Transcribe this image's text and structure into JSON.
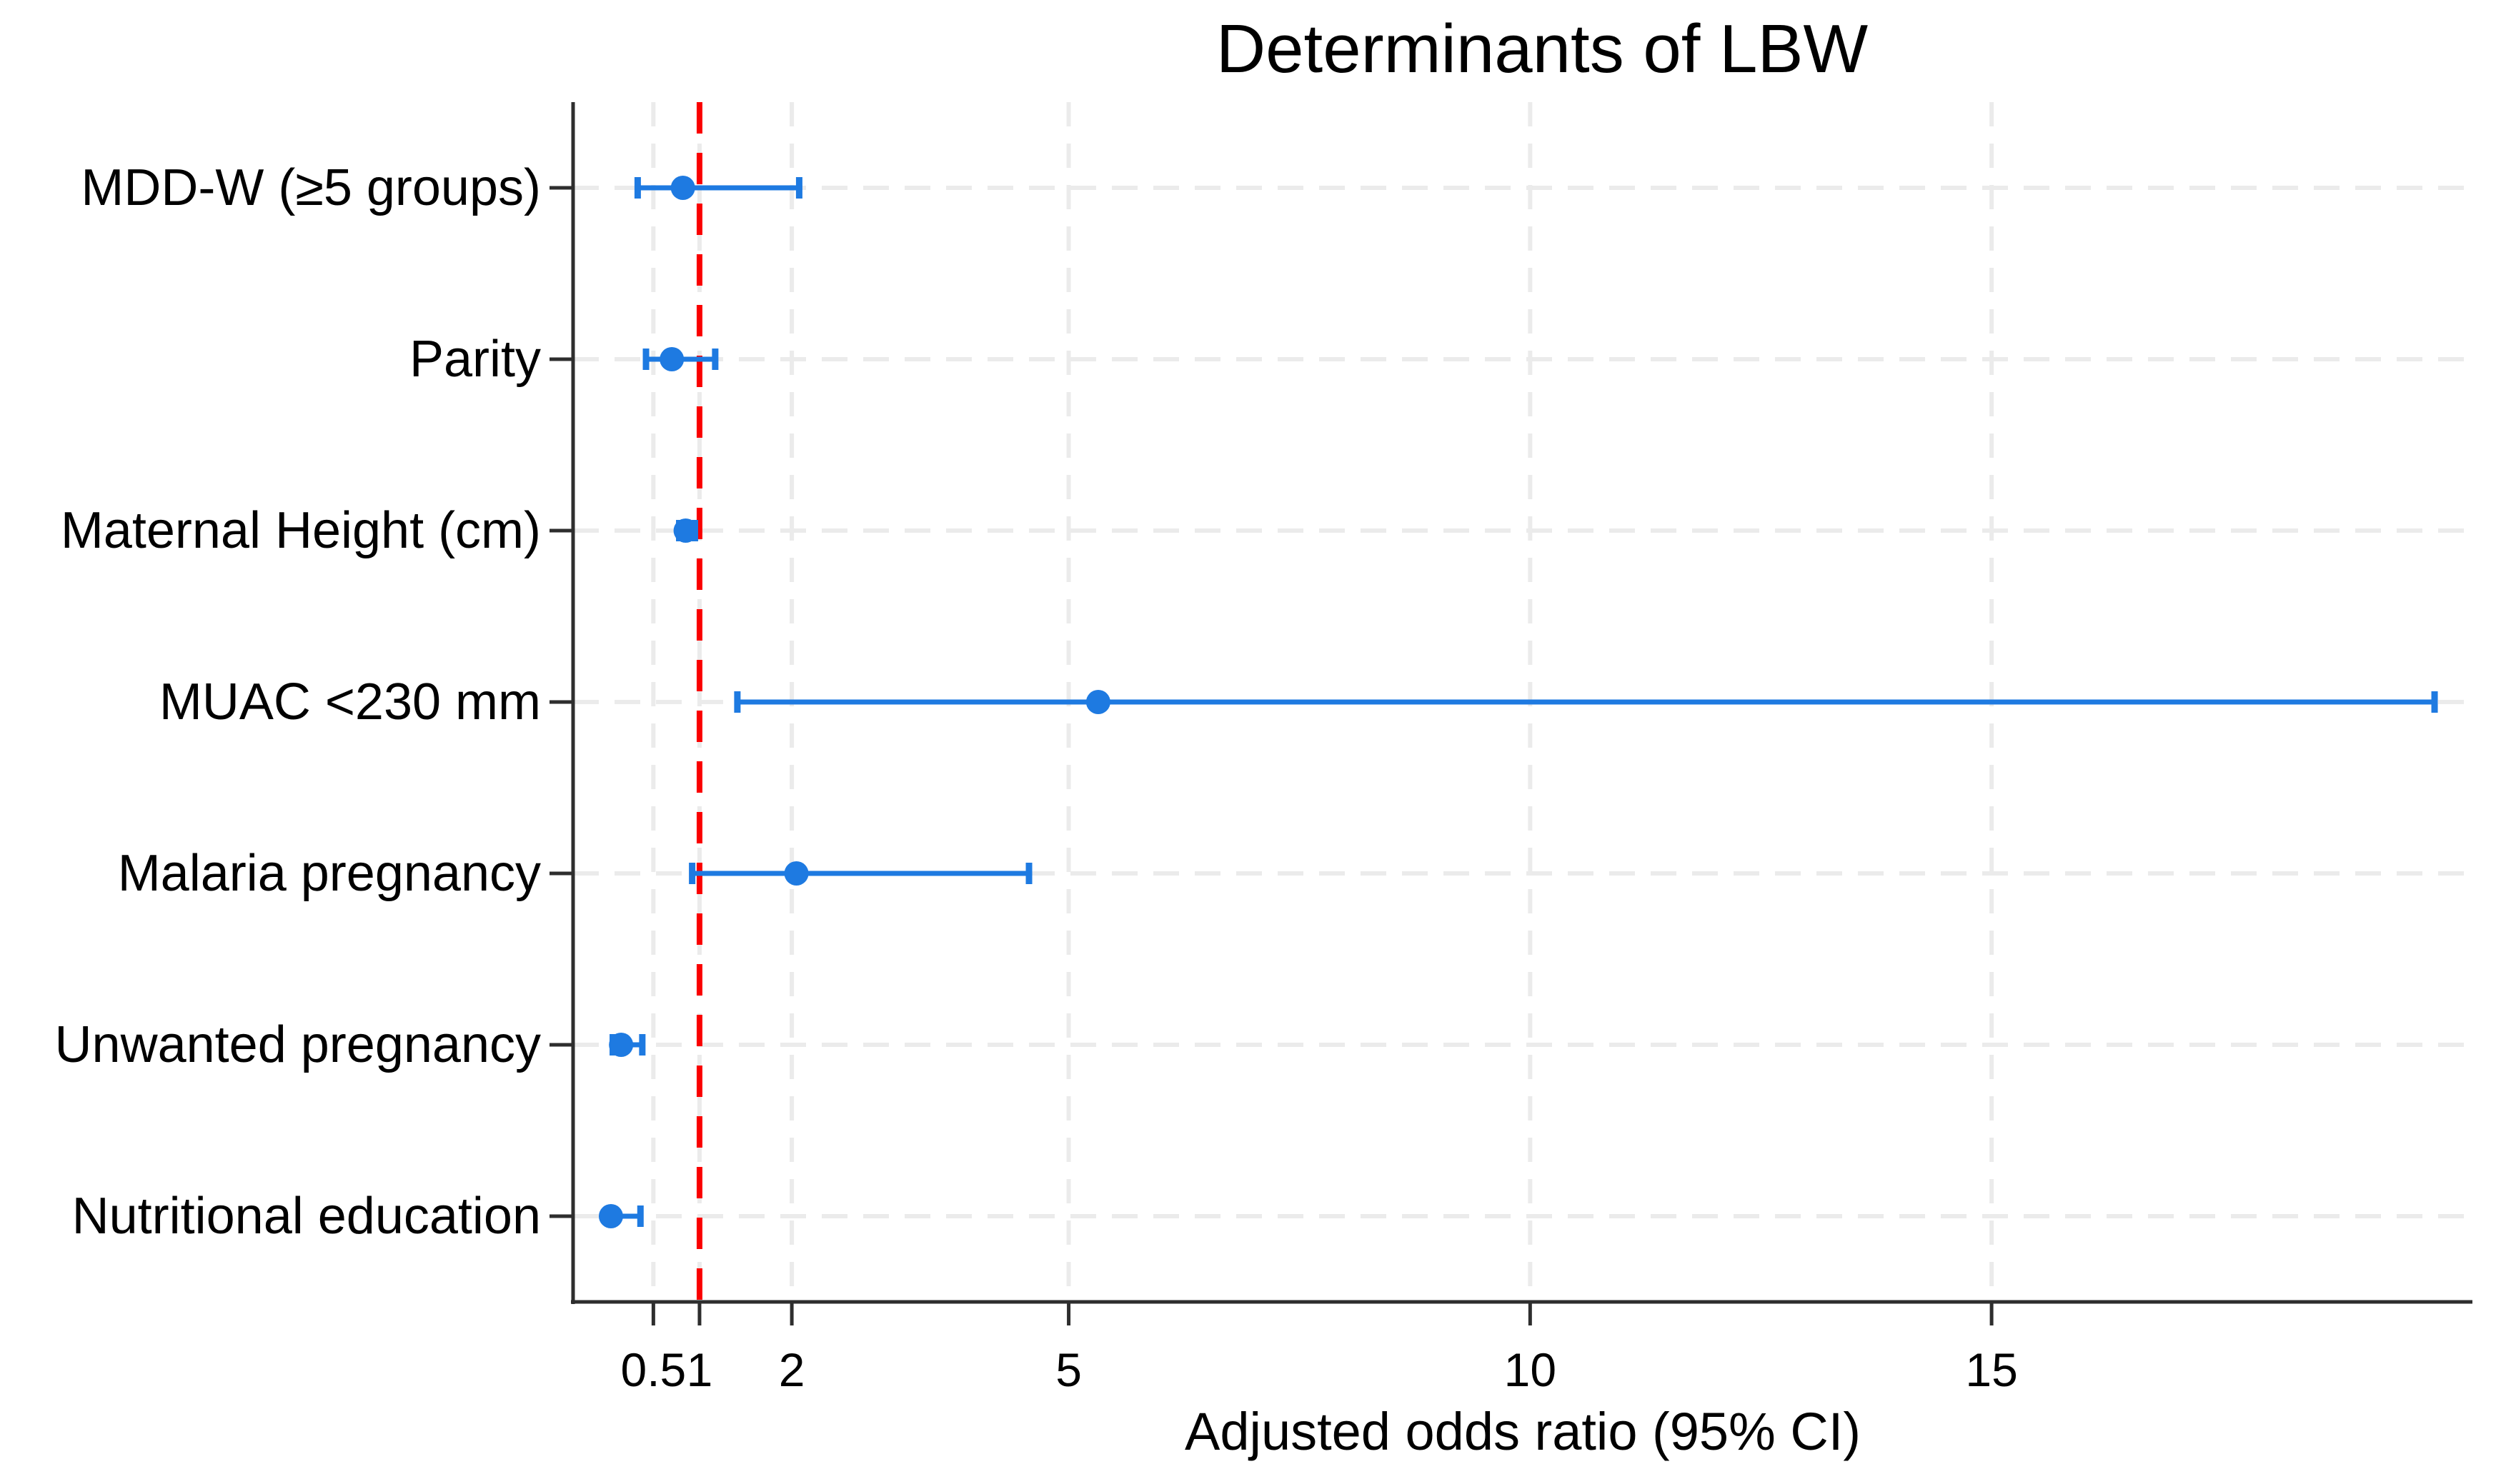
{
  "figure": {
    "background": "#ffffff"
  },
  "chart_data": {
    "type": "scatter",
    "variant": "forest-plot",
    "title": "Determinants of LBW",
    "xlabel": "Adjusted odds ratio (95% CI)",
    "ylabel": "",
    "categories": [
      "MDD-W (≥5 groups)",
      "Parity",
      "Maternal Height (cm)",
      "MUAC <230 mm",
      "Malaria pregnancy",
      "Unwanted pregnancy",
      "Nutritional education"
    ],
    "series": [
      {
        "name": "Adjusted odds ratio with 95% CI",
        "or": [
          0.82,
          0.7,
          0.85,
          5.32,
          2.05,
          0.15,
          0.04
        ],
        "ci_low": [
          0.33,
          0.42,
          0.78,
          1.41,
          0.92,
          0.06,
          0.01
        ],
        "ci_high": [
          2.08,
          1.17,
          0.95,
          19.8,
          4.57,
          0.38,
          0.36
        ]
      }
    ],
    "x_ticks": [
      0.5,
      1,
      2,
      5,
      10,
      15
    ],
    "x_tick_labels": [
      "0.5",
      "1",
      "2",
      "5",
      "10",
      "15"
    ],
    "xlim": [
      -0.37,
      20.21
    ],
    "scale": "linear",
    "grid": true,
    "legend": false,
    "ref_line": {
      "x": 1,
      "style": "dashed"
    },
    "colors": {
      "marker": "#1e7ae1",
      "ci": "#1e7ae1",
      "reference": "#fa0000",
      "grid": "#ebebeb",
      "axis": "#2e2e2e",
      "text": "#000000"
    }
  }
}
